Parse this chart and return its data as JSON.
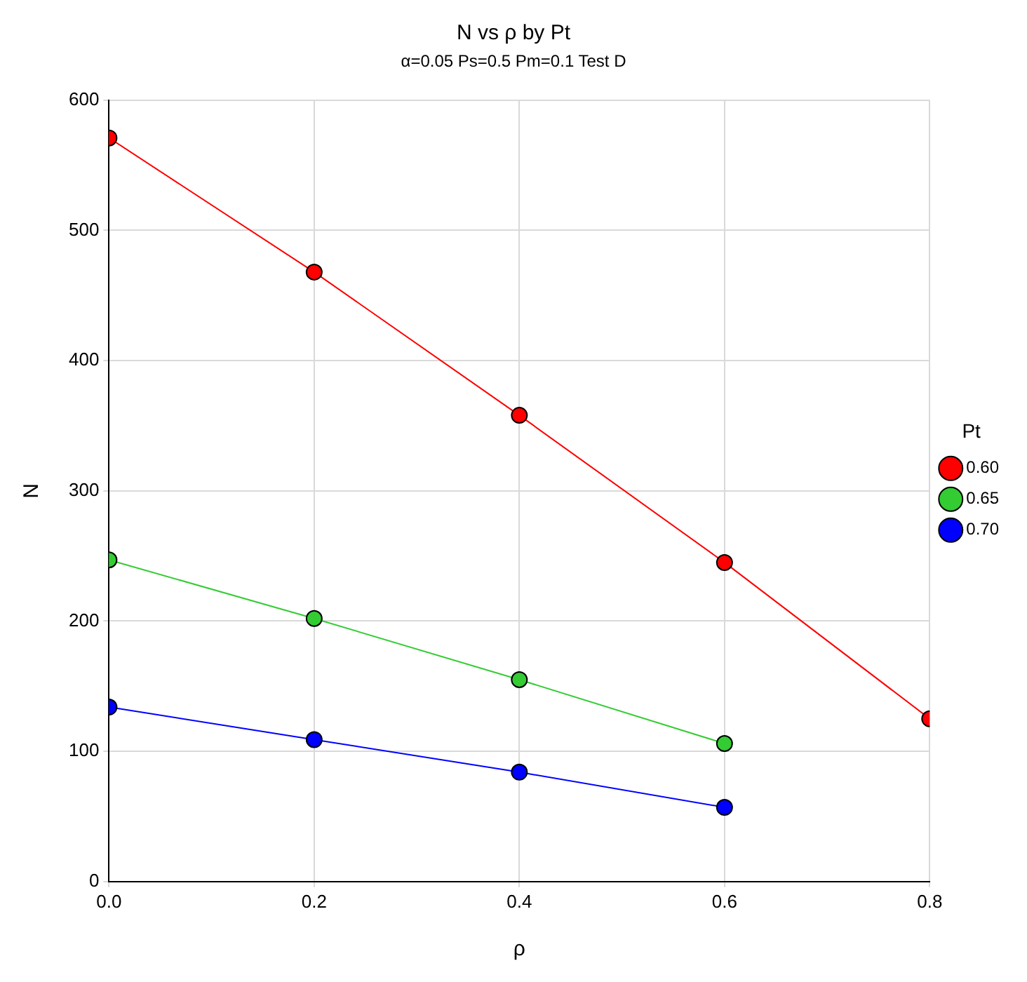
{
  "chart_data": {
    "type": "line",
    "title": "N vs ρ by Pt",
    "subtitle": "α=0.05 Ps=0.5 Pm=0.1 Test D",
    "xlabel": "ρ",
    "ylabel": "N",
    "legend_title": "Pt",
    "legend": "right",
    "grid": true,
    "marker": "circle",
    "line_style": "solid",
    "xlim": [
      0,
      0.8
    ],
    "xticks": [
      {
        "value": 0,
        "label": "0.0"
      },
      {
        "value": 0.2,
        "label": "0.2"
      },
      {
        "value": 0.4,
        "label": "0.4"
      },
      {
        "value": 0.6,
        "label": "0.6"
      },
      {
        "value": 0.8,
        "label": "0.8"
      }
    ],
    "ylim": [
      0,
      600
    ],
    "yticks": [
      0,
      100,
      200,
      300,
      400,
      500,
      600
    ],
    "series": [
      {
        "name": "0.60",
        "color": "#ff0000",
        "x": [
          0,
          0.2,
          0.4,
          0.6,
          0.8
        ],
        "values": [
          571,
          468,
          358,
          245,
          125
        ]
      },
      {
        "name": "0.65",
        "color": "#33cc33",
        "x": [
          0,
          0.2,
          0.4,
          0.6
        ],
        "values": [
          247,
          202,
          155,
          106
        ]
      },
      {
        "name": "0.70",
        "color": "#0000ff",
        "x": [
          0,
          0.2,
          0.4,
          0.6
        ],
        "values": [
          134,
          109,
          84,
          57
        ]
      }
    ]
  }
}
